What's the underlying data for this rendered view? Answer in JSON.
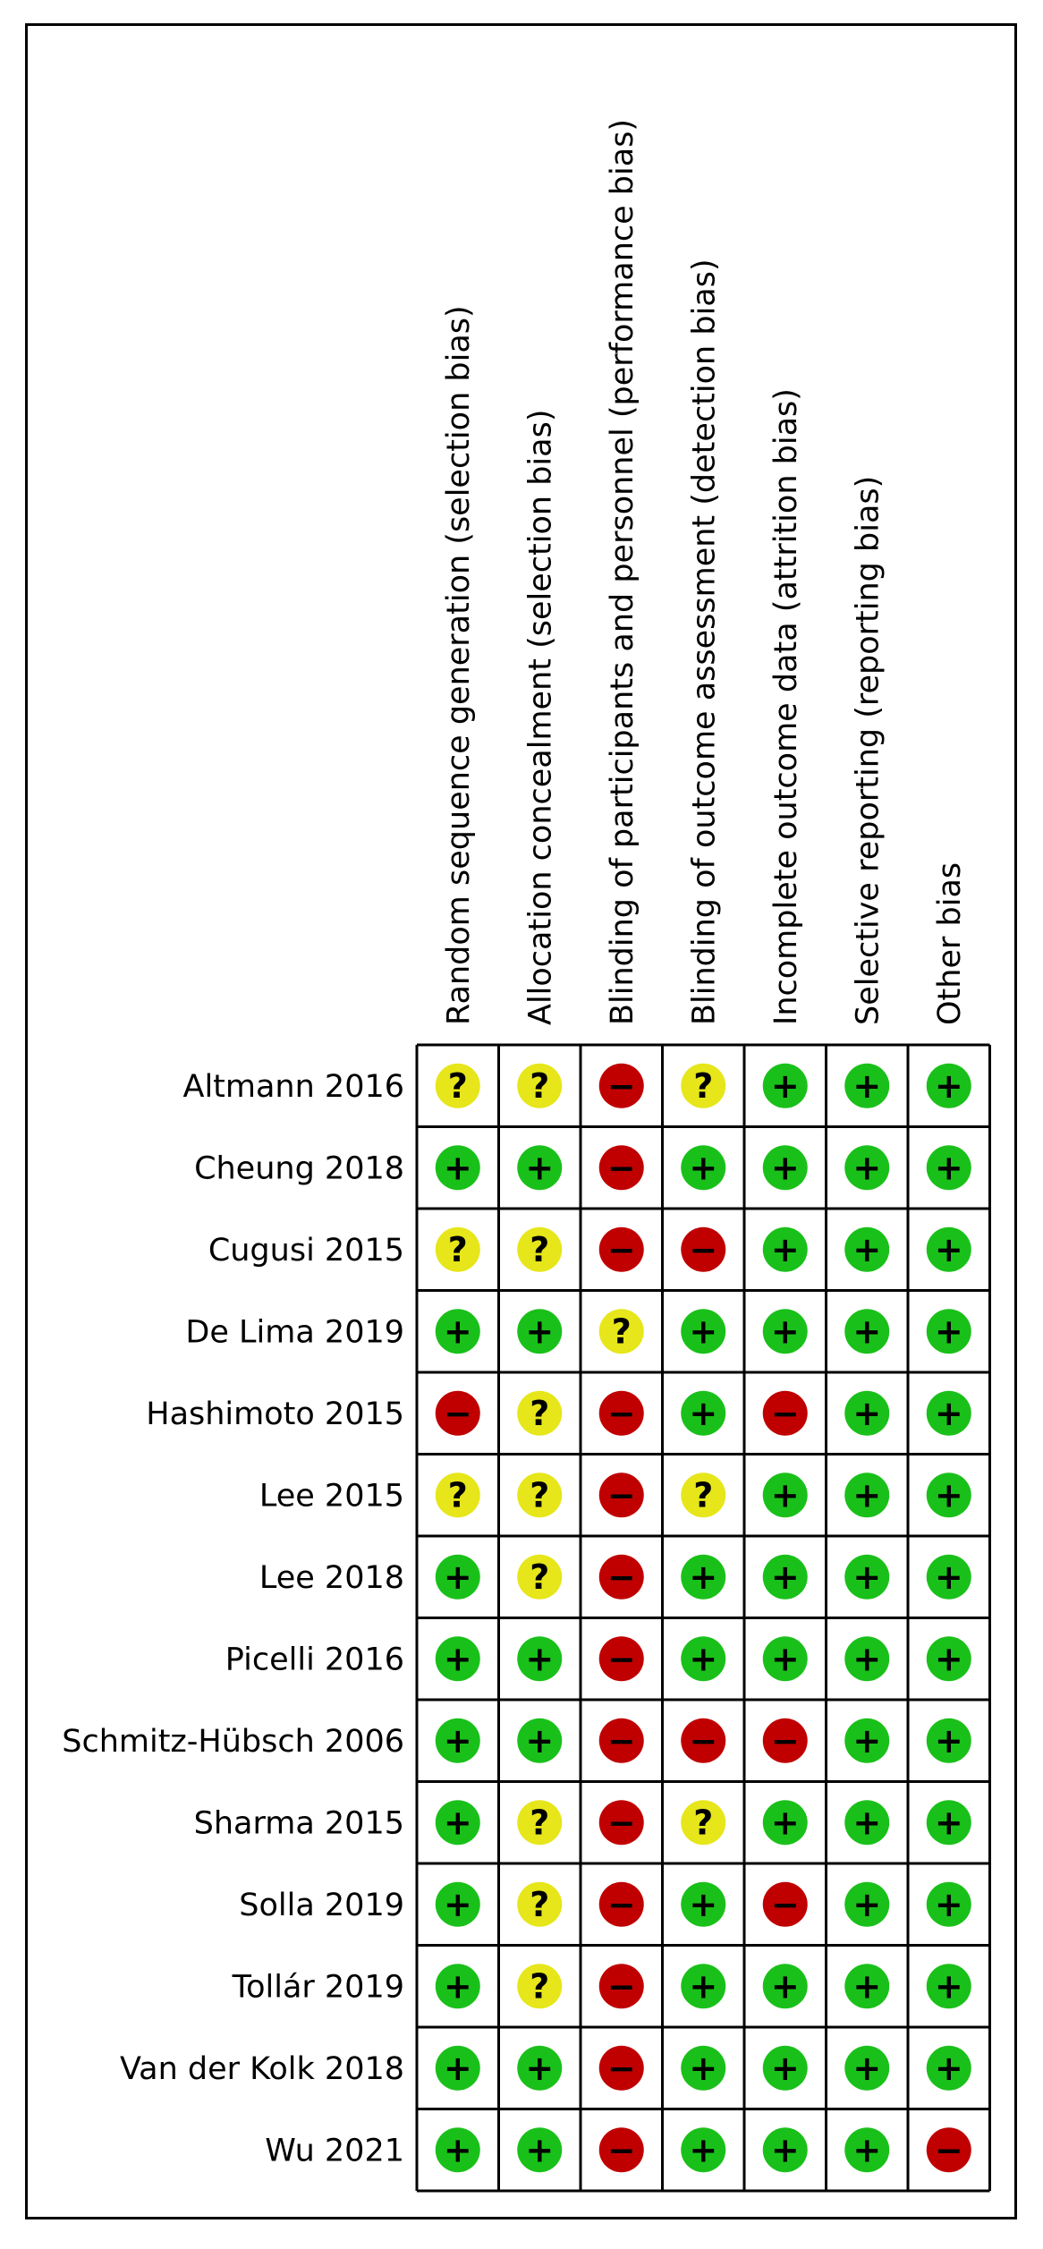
{
  "chart_data": {
    "type": "table",
    "title": "",
    "columns": [
      "Random sequence generation (selection bias)",
      "Allocation concealment (selection bias)",
      "Blinding of participants and personnel (performance bias)",
      "Blinding of outcome assessment (detection bias)",
      "Incomplete outcome data (attrition bias)",
      "Selective reporting (reporting bias)",
      "Other bias"
    ],
    "studies": [
      "Altmann 2016",
      "Cheung 2018",
      "Cugusi 2015",
      "De Lima 2019",
      "Hashimoto 2015",
      "Lee 2015",
      "Lee 2018",
      "Picelli 2016",
      "Schmitz-Hübsch 2006",
      "Sharma 2015",
      "Solla 2019",
      "Tollár 2019",
      "Van der Kolk 2018",
      "Wu 2021"
    ],
    "ratings": [
      [
        "?",
        "?",
        "-",
        "?",
        "+",
        "+",
        "+"
      ],
      [
        "+",
        "+",
        "-",
        "+",
        "+",
        "+",
        "+"
      ],
      [
        "?",
        "?",
        "-",
        "-",
        "+",
        "+",
        "+"
      ],
      [
        "+",
        "+",
        "?",
        "+",
        "+",
        "+",
        "+"
      ],
      [
        "-",
        "?",
        "-",
        "+",
        "-",
        "+",
        "+"
      ],
      [
        "?",
        "?",
        "-",
        "?",
        "+",
        "+",
        "+"
      ],
      [
        "+",
        "?",
        "-",
        "+",
        "+",
        "+",
        "+"
      ],
      [
        "+",
        "+",
        "-",
        "+",
        "+",
        "+",
        "+"
      ],
      [
        "+",
        "+",
        "-",
        "-",
        "-",
        "+",
        "+"
      ],
      [
        "+",
        "?",
        "-",
        "?",
        "+",
        "+",
        "+"
      ],
      [
        "+",
        "?",
        "-",
        "+",
        "-",
        "+",
        "+"
      ],
      [
        "+",
        "?",
        "-",
        "+",
        "+",
        "+",
        "+"
      ],
      [
        "+",
        "+",
        "-",
        "+",
        "+",
        "+",
        "+"
      ],
      [
        "+",
        "+",
        "-",
        "+",
        "+",
        "+",
        "-"
      ]
    ],
    "symbol_labels": {
      "+": "+",
      "?": "?",
      "-": "−"
    },
    "colors": {
      "+": "#1ac01a",
      "?": "#e6e61a",
      "-": "#c00000"
    }
  }
}
